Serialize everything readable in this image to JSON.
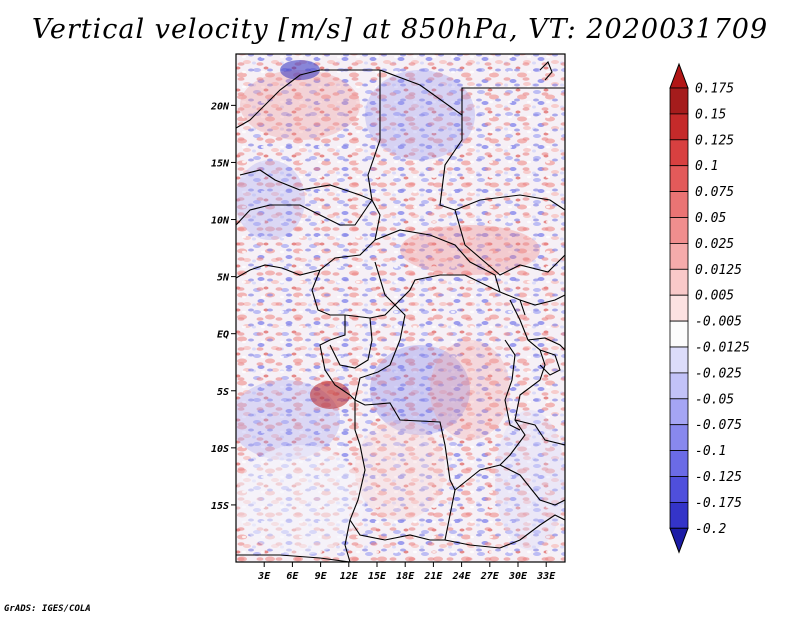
{
  "title": "Vertical velocity [m/s] at 850hPa, VT: 2020031709",
  "credit": "GrADS: IGES/COLA",
  "map": {
    "variable": "Vertical velocity",
    "units": "m/s",
    "level": "850hPa",
    "valid_time": "2020031709",
    "lon_range": [
      0,
      35
    ],
    "lat_range": [
      -20,
      24.5
    ],
    "lat_ticks": [
      {
        "value": 20,
        "label": "20N"
      },
      {
        "value": 15,
        "label": "15N"
      },
      {
        "value": 10,
        "label": "10N"
      },
      {
        "value": 5,
        "label": "5N"
      },
      {
        "value": 0,
        "label": "EQ"
      },
      {
        "value": -5,
        "label": "5S"
      },
      {
        "value": -10,
        "label": "10S"
      },
      {
        "value": -15,
        "label": "15S"
      }
    ],
    "lon_ticks": [
      {
        "value": 3,
        "label": "3E"
      },
      {
        "value": 6,
        "label": "6E"
      },
      {
        "value": 9,
        "label": "9E"
      },
      {
        "value": 12,
        "label": "12E"
      },
      {
        "value": 15,
        "label": "15E"
      },
      {
        "value": 18,
        "label": "18E"
      },
      {
        "value": 21,
        "label": "21E"
      },
      {
        "value": 24,
        "label": "24E"
      },
      {
        "value": 27,
        "label": "27E"
      },
      {
        "value": 30,
        "label": "30E"
      },
      {
        "value": 33,
        "label": "33E"
      }
    ]
  },
  "colorbar": {
    "levels": [
      {
        "label": "0.175",
        "color": "#a51c1c"
      },
      {
        "label": "0.15",
        "color": "#c52a2a"
      },
      {
        "label": "0.125",
        "color": "#d84040"
      },
      {
        "label": "0.1",
        "color": "#e35a5a"
      },
      {
        "label": "0.075",
        "color": "#ea7474"
      },
      {
        "label": "0.05",
        "color": "#f08e8e"
      },
      {
        "label": "0.025",
        "color": "#f5abab"
      },
      {
        "label": "0.0125",
        "color": "#f9c9c9"
      },
      {
        "label": "0.005",
        "color": "#fce2e2"
      },
      {
        "label": "-0.005",
        "color": "#fcfcfc"
      },
      {
        "label": "-0.0125",
        "color": "#dcdcfa"
      },
      {
        "label": "-0.025",
        "color": "#c2c2f8"
      },
      {
        "label": "-0.05",
        "color": "#a5a5f4"
      },
      {
        "label": "-0.075",
        "color": "#8888ee"
      },
      {
        "label": "-0.1",
        "color": "#6b6be6"
      },
      {
        "label": "-0.125",
        "color": "#4f4fdc"
      },
      {
        "label": "-0.175",
        "color": "#3434c8"
      },
      {
        "label": "-0.2",
        "color": "#2020b0"
      }
    ],
    "top_color": "#b21616",
    "bottom_color": "#1c1ca6"
  }
}
